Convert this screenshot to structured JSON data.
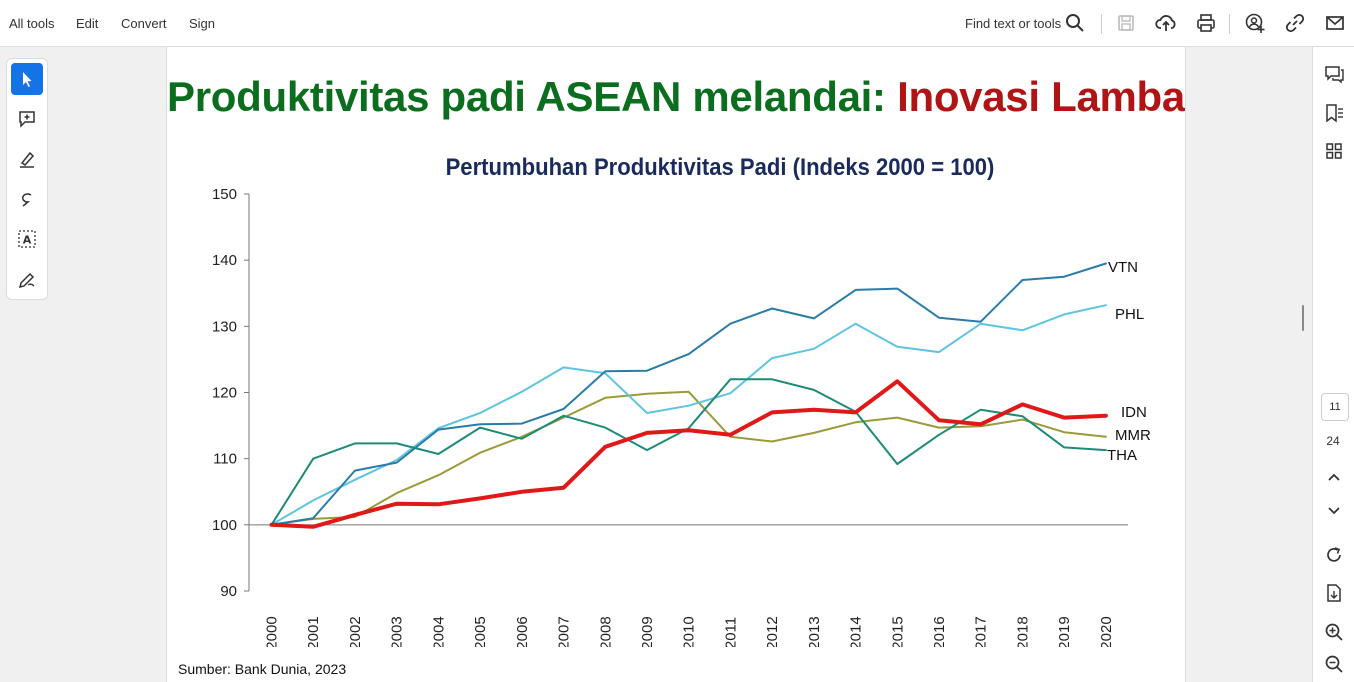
{
  "toolbar": {
    "menu": [
      "All tools",
      "Edit",
      "Convert",
      "Sign"
    ],
    "find_label": "Find text or tools"
  },
  "icons": {
    "top": [
      "search-icon",
      "save-icon",
      "upload-cloud-icon",
      "print-icon",
      "share-user-icon",
      "link-icon",
      "email-icon"
    ],
    "left": [
      "select-cursor-icon",
      "add-comment-icon",
      "highlight-pen-icon",
      "draw-loop-icon",
      "text-select-icon",
      "sign-pen-icon"
    ],
    "right": [
      "comments-icon",
      "bookmarks-icon",
      "thumbnails-icon",
      "page-up-icon",
      "page-down-icon",
      "rotate-icon",
      "extract-icon",
      "zoom-in-icon",
      "zoom-out-icon"
    ]
  },
  "pager": {
    "current": "11",
    "total": "24"
  },
  "slide": {
    "headline_part1": "Produktivitas padi ASEAN melandai",
    "headline_colon": ":",
    "headline_part2": " Inovasi Lambat?",
    "source": "Sumber: Bank Dunia, 2023"
  },
  "colors": {
    "accent": "#1473e6",
    "headline_green": "#0a6e1e",
    "headline_red": "#b01414",
    "chart_title": "#1a2a5a"
  },
  "chart_data": {
    "type": "line",
    "title": "Pertumbuhan Produktivitas Padi (Indeks 2000 = 100)",
    "xlabel": "",
    "ylabel": "",
    "ylim": [
      90,
      150
    ],
    "yticks": [
      90,
      100,
      110,
      120,
      130,
      140,
      150
    ],
    "categories": [
      "2000",
      "2001",
      "2002",
      "2003",
      "2004",
      "2005",
      "2006",
      "2007",
      "2008",
      "2009",
      "2010",
      "2011",
      "2012",
      "2013",
      "2014",
      "2015",
      "2016",
      "2017",
      "2018",
      "2019",
      "2020"
    ],
    "grid": false,
    "series": [
      {
        "name": "VTN",
        "color": "#2a7ca8",
        "width": 2,
        "values": [
          100,
          101,
          108.2,
          109.4,
          114.4,
          115.2,
          115.3,
          117.5,
          123.2,
          123.3,
          125.8,
          130.4,
          132.7,
          131.2,
          135.5,
          135.7,
          131.3,
          130.7,
          137,
          137.5,
          139.5
        ]
      },
      {
        "name": "PHL",
        "color": "#5ec4e0",
        "width": 2,
        "values": [
          100,
          103.7,
          106.8,
          109.8,
          114.6,
          116.9,
          120.1,
          123.8,
          122.9,
          116.9,
          118,
          119.9,
          125.2,
          126.6,
          130.4,
          126.9,
          126.1,
          130.4,
          129.4,
          131.8,
          133.2
        ]
      },
      {
        "name": "IDN",
        "color": "#e01818",
        "width": 4,
        "values": [
          100,
          99.7,
          101.5,
          103.2,
          103.1,
          104,
          105,
          105.6,
          111.8,
          113.9,
          114.3,
          113.6,
          117,
          117.4,
          117,
          121.7,
          115.8,
          115.2,
          118.2,
          116.2,
          116.5
        ]
      },
      {
        "name": "MMR",
        "color": "#9a9a3a",
        "width": 2,
        "values": [
          100,
          100.9,
          101.2,
          104.8,
          107.5,
          110.9,
          113.3,
          116.2,
          119.2,
          119.8,
          120.1,
          113.3,
          112.6,
          113.9,
          115.5,
          116.2,
          114.7,
          114.9,
          115.9,
          114,
          113.3
        ]
      },
      {
        "name": "THA",
        "color": "#1e8a78",
        "width": 2,
        "values": [
          100,
          110,
          112.3,
          112.3,
          110.7,
          114.7,
          113,
          116.5,
          114.7,
          111.3,
          114.6,
          122,
          122,
          120.4,
          117.1,
          109.2,
          113.6,
          117.4,
          116.4,
          111.7,
          111.3
        ]
      }
    ]
  }
}
